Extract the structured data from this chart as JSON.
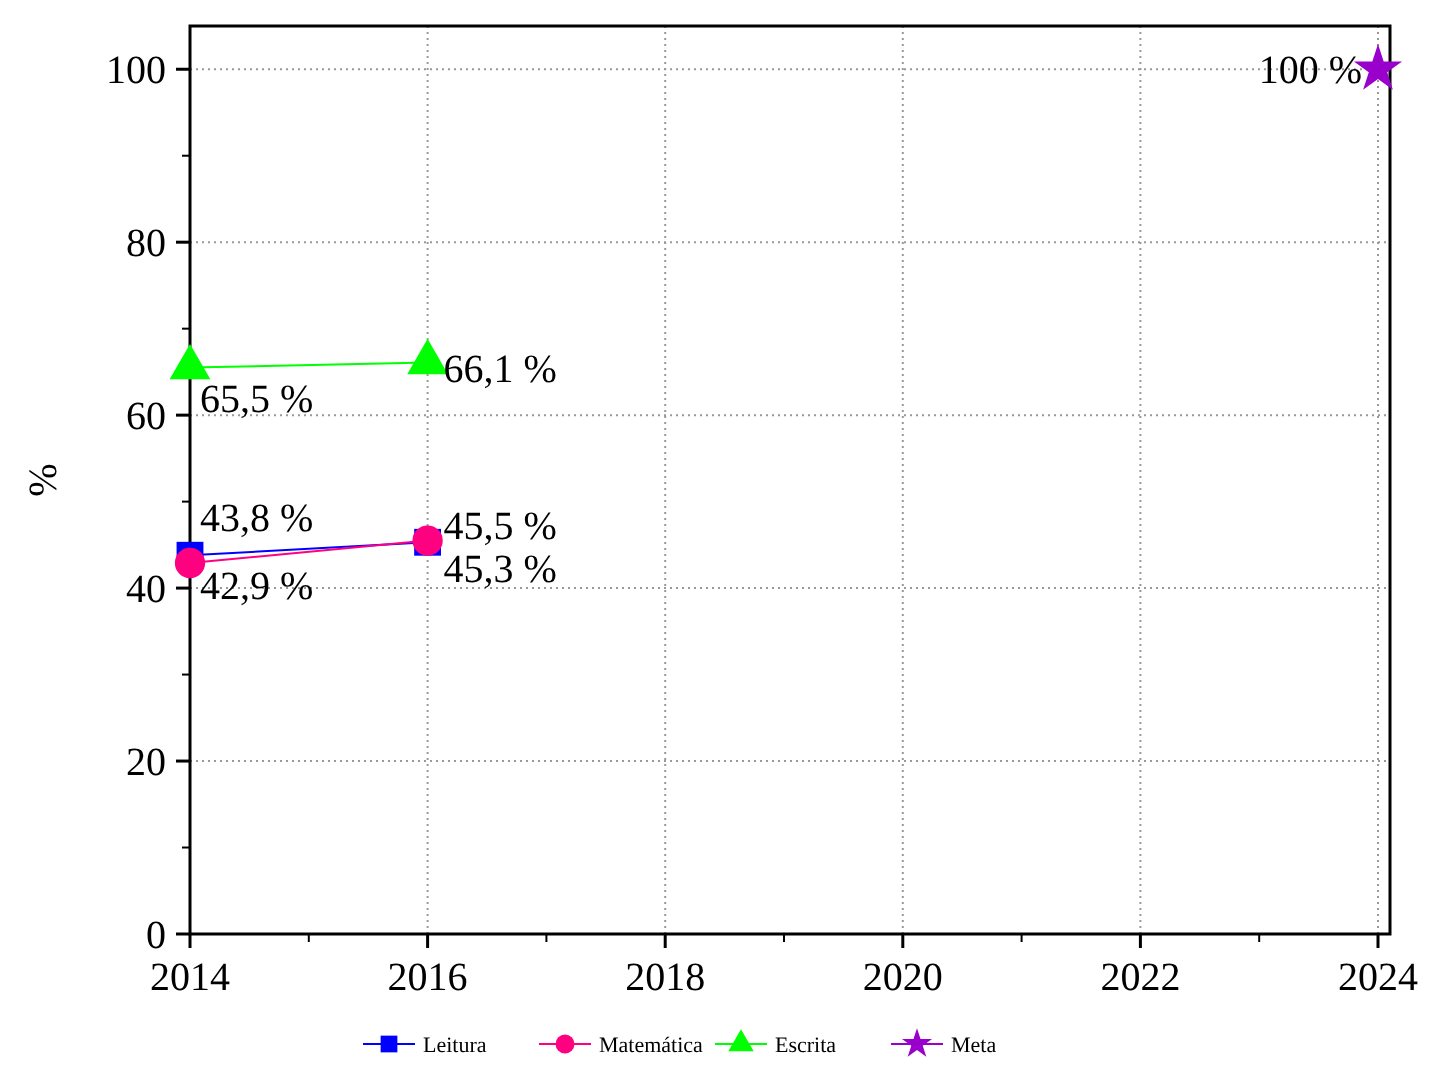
{
  "chart_data": {
    "type": "line",
    "ylabel": "%",
    "x": [
      2014,
      2016
    ],
    "series": [
      {
        "name": "Leitura",
        "color": "#0000ff",
        "marker": "square",
        "values": [
          43.8,
          45.3
        ],
        "value_labels": [
          "43,8 %",
          "45,3 %"
        ]
      },
      {
        "name": "Matemática",
        "color": "#ff0080",
        "marker": "circle",
        "values": [
          42.9,
          45.5
        ],
        "value_labels": [
          "42,9 %",
          "45,5 %"
        ]
      },
      {
        "name": "Escrita",
        "color": "#00ff00",
        "marker": "triangle",
        "values": [
          65.5,
          66.1
        ],
        "value_labels": [
          "65,5 %",
          "66,1 %"
        ]
      },
      {
        "name": "Meta",
        "color": "#9900cc",
        "marker": "star",
        "x": [
          2024
        ],
        "values": [
          100
        ],
        "value_labels": [
          "100 %"
        ]
      }
    ],
    "xlim": [
      2014,
      2024
    ],
    "xticks": [
      2014,
      2016,
      2018,
      2020,
      2022,
      2024
    ],
    "ylim": [
      0,
      105
    ],
    "yticks": [
      0,
      20,
      40,
      60,
      80,
      100
    ],
    "grid": true,
    "legend": "bottom",
    "line_style": "solid"
  }
}
